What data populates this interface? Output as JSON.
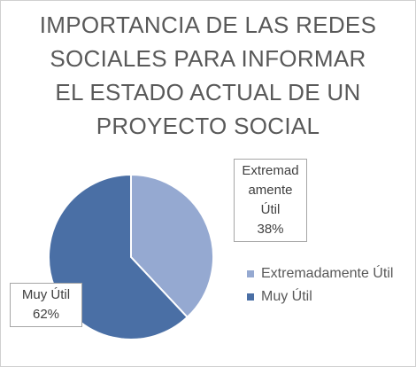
{
  "chart_data": {
    "type": "pie",
    "title_lines": [
      "IMPORTANCIA DE LAS REDES",
      "SOCIALES PARA INFORMAR",
      "EL ESTADO ACTUAL DE UN",
      "PROYECTO SOCIAL"
    ],
    "categories": [
      "Extremadamente Útil",
      "Muy Útil"
    ],
    "values": [
      38,
      62
    ],
    "data_labels": [
      {
        "lines": [
          "Extremad",
          "amente",
          "Útil",
          "38%"
        ]
      },
      {
        "lines": [
          "Muy Útil",
          "62%"
        ]
      }
    ],
    "colors": [
      "#95a9d1",
      "#4a6fa5"
    ],
    "legend": {
      "placement": "right",
      "entries": [
        "Extremadamente Útil",
        "Muy Útil"
      ]
    }
  }
}
